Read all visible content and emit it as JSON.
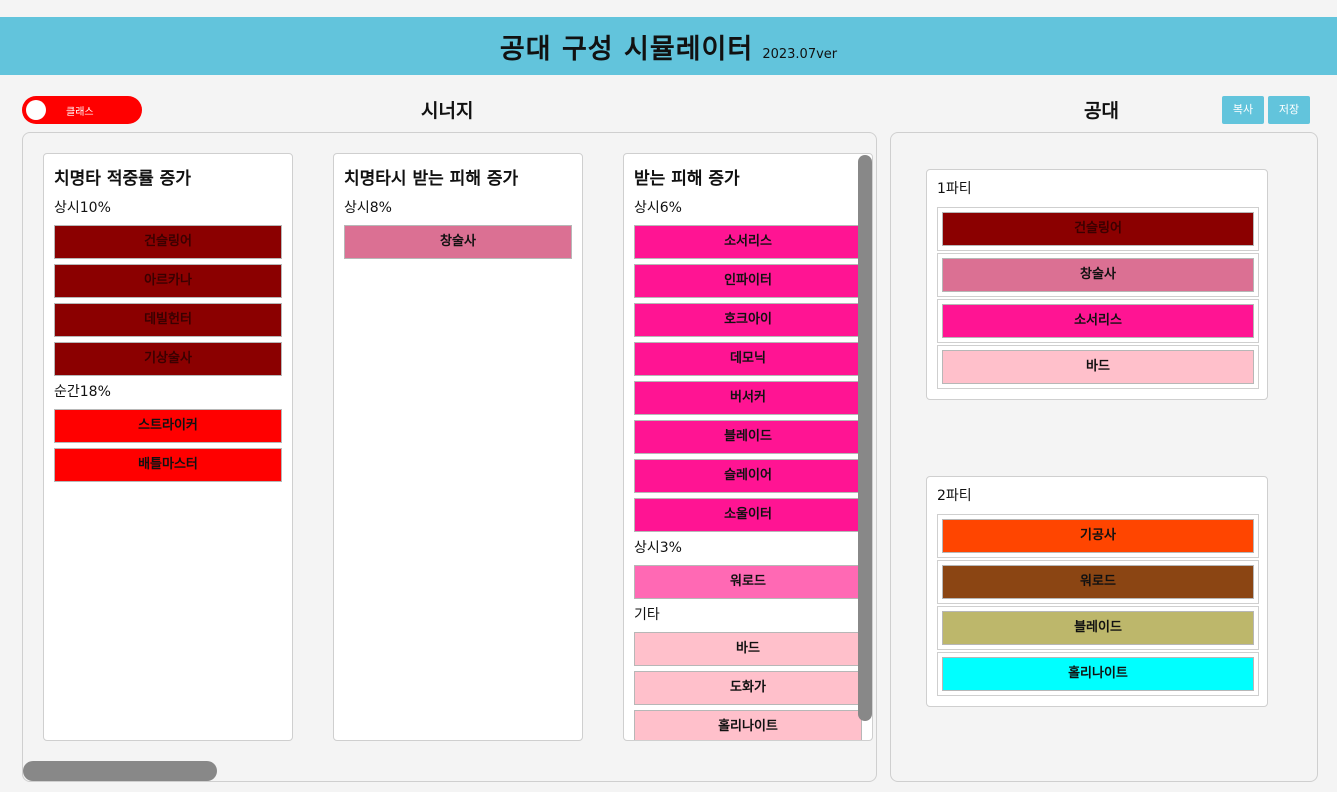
{
  "header": {
    "title": "공대 구성 시뮬레이터",
    "version": "2023.07ver"
  },
  "toggle": {
    "label": "클래스"
  },
  "synergy": {
    "title": "시너지",
    "cards": [
      {
        "title": "치명타 적중률 증가",
        "groups": [
          {
            "label": "상시10%",
            "items": [
              {
                "name": "건슬링어",
                "color": "#8b0000"
              },
              {
                "name": "아르카나",
                "color": "#8b0000"
              },
              {
                "name": "데빌헌터",
                "color": "#8b0000"
              },
              {
                "name": "기상술사",
                "color": "#8b0000"
              }
            ]
          },
          {
            "label": "순간18%",
            "items": [
              {
                "name": "스트라이커",
                "color": "#ff0000"
              },
              {
                "name": "배틀마스터",
                "color": "#ff0000"
              }
            ]
          }
        ]
      },
      {
        "title": "치명타시 받는 피해 증가",
        "groups": [
          {
            "label": "상시8%",
            "items": [
              {
                "name": "창술사",
                "color": "#db7093"
              }
            ]
          }
        ]
      },
      {
        "title": "받는 피해 증가",
        "groups": [
          {
            "label": "상시6%",
            "items": [
              {
                "name": "소서리스",
                "color": "#ff1493"
              },
              {
                "name": "인파이터",
                "color": "#ff1493"
              },
              {
                "name": "호크아이",
                "color": "#ff1493"
              },
              {
                "name": "데모닉",
                "color": "#ff1493"
              },
              {
                "name": "버서커",
                "color": "#ff1493"
              },
              {
                "name": "블레이드",
                "color": "#ff1493"
              },
              {
                "name": "슬레이어",
                "color": "#ff1493"
              },
              {
                "name": "소울이터",
                "color": "#ff1493"
              }
            ]
          },
          {
            "label": "상시3%",
            "items": [
              {
                "name": "워로드",
                "color": "#ff69b4"
              }
            ]
          },
          {
            "label": "기타",
            "items": [
              {
                "name": "바드",
                "color": "#ffc0cb"
              },
              {
                "name": "도화가",
                "color": "#ffc0cb"
              },
              {
                "name": "홀리나이트",
                "color": "#ffc0cb"
              }
            ]
          }
        ]
      }
    ]
  },
  "raid": {
    "title": "공대",
    "copy_label": "복사",
    "save_label": "저장",
    "parties": [
      {
        "title": "1파티",
        "members": [
          {
            "name": "건슬링어",
            "color": "#8b0000"
          },
          {
            "name": "창술사",
            "color": "#db7093"
          },
          {
            "name": "소서리스",
            "color": "#ff1493"
          },
          {
            "name": "바드",
            "color": "#ffc0cb"
          }
        ]
      },
      {
        "title": "2파티",
        "members": [
          {
            "name": "기공사",
            "color": "#ff4500"
          },
          {
            "name": "워로드",
            "color": "#8b4513"
          },
          {
            "name": "블레이드",
            "color": "#bdb76b"
          },
          {
            "name": "홀리나이트",
            "color": "#00ffff"
          }
        ]
      }
    ]
  }
}
